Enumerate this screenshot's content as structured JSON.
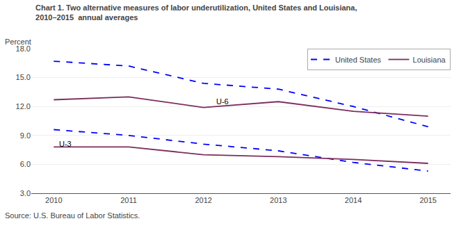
{
  "chart_data": {
    "type": "line",
    "title": "Chart 1. Two alternative measures of labor underutilization, United States and Louisiana,",
    "subtitle": "2010–2015  annual averages",
    "y_label": "Percent",
    "source": "Source: U.S. Bureau of Labor Statistics.",
    "x": [
      2010,
      2011,
      2012,
      2013,
      2014,
      2015
    ],
    "series": [
      {
        "name": "United States",
        "color": "#0000ff",
        "line_style": "dashed",
        "values": [
          16.7,
          16.2,
          14.4,
          13.8,
          12.0,
          9.9
        ]
      },
      {
        "name": "Louisiana",
        "color": "#7b2d5e",
        "line_style": "solid",
        "values": [
          12.7,
          13.0,
          11.9,
          12.5,
          11.5,
          11.0
        ]
      },
      {
        "name": "United States",
        "color": "#0000ff",
        "line_style": "dashed",
        "values": [
          9.6,
          9.0,
          8.1,
          7.4,
          6.2,
          5.3
        ]
      },
      {
        "name": "Louisiana",
        "color": "#7b2d5e",
        "line_style": "solid",
        "values": [
          7.8,
          7.8,
          7.0,
          6.8,
          6.5,
          6.1
        ]
      }
    ],
    "xlim": [
      2009.7,
      2015.3
    ],
    "xticks": [
      2010,
      2011,
      2012,
      2013,
      2014,
      2015
    ],
    "ylim": [
      3.0,
      18.0
    ],
    "yticks": [
      {
        "value": 3.0,
        "label": "3.0"
      },
      {
        "value": 6.0,
        "label": "6.0"
      },
      {
        "value": 9.0,
        "label": "9.0"
      },
      {
        "value": 12.0,
        "label": "12.0"
      },
      {
        "value": 15.0,
        "label": "15.0"
      },
      {
        "value": 18.0,
        "label": "18.0"
      }
    ],
    "annotations": [
      {
        "text": "U-6",
        "x": 2012.15,
        "y": 12.55
      },
      {
        "text": "U-3",
        "x": 2010.05,
        "y": 8.15
      }
    ],
    "grid": "y",
    "legend": "upper right"
  }
}
